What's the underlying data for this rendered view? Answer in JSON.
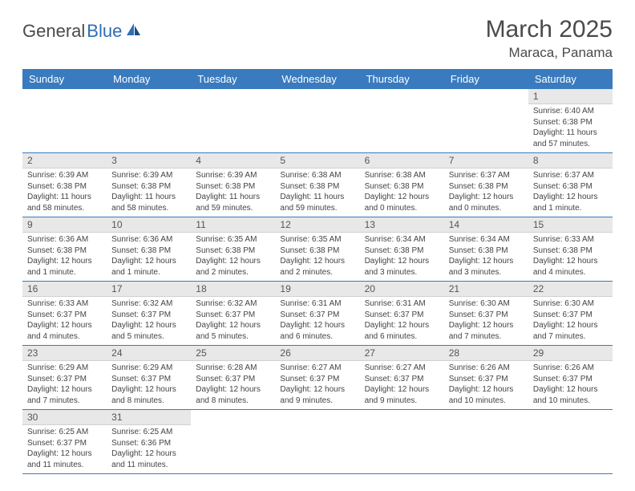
{
  "logo": {
    "text_dark": "General",
    "text_blue": "Blue"
  },
  "title": "March 2025",
  "location": "Maraca, Panama",
  "colors": {
    "header_bg": "#3a7bbf",
    "header_text": "#ffffff",
    "daynum_bg": "#e8e8e8",
    "border": "#3a7bbf",
    "logo_blue": "#2d6fb5",
    "logo_dark": "#4a4a4a"
  },
  "weekdays": [
    "Sunday",
    "Monday",
    "Tuesday",
    "Wednesday",
    "Thursday",
    "Friday",
    "Saturday"
  ],
  "weeks": [
    [
      null,
      null,
      null,
      null,
      null,
      null,
      {
        "n": "1",
        "sr": "Sunrise: 6:40 AM",
        "ss": "Sunset: 6:38 PM",
        "dl": "Daylight: 11 hours and 57 minutes."
      }
    ],
    [
      {
        "n": "2",
        "sr": "Sunrise: 6:39 AM",
        "ss": "Sunset: 6:38 PM",
        "dl": "Daylight: 11 hours and 58 minutes."
      },
      {
        "n": "3",
        "sr": "Sunrise: 6:39 AM",
        "ss": "Sunset: 6:38 PM",
        "dl": "Daylight: 11 hours and 58 minutes."
      },
      {
        "n": "4",
        "sr": "Sunrise: 6:39 AM",
        "ss": "Sunset: 6:38 PM",
        "dl": "Daylight: 11 hours and 59 minutes."
      },
      {
        "n": "5",
        "sr": "Sunrise: 6:38 AM",
        "ss": "Sunset: 6:38 PM",
        "dl": "Daylight: 11 hours and 59 minutes."
      },
      {
        "n": "6",
        "sr": "Sunrise: 6:38 AM",
        "ss": "Sunset: 6:38 PM",
        "dl": "Daylight: 12 hours and 0 minutes."
      },
      {
        "n": "7",
        "sr": "Sunrise: 6:37 AM",
        "ss": "Sunset: 6:38 PM",
        "dl": "Daylight: 12 hours and 0 minutes."
      },
      {
        "n": "8",
        "sr": "Sunrise: 6:37 AM",
        "ss": "Sunset: 6:38 PM",
        "dl": "Daylight: 12 hours and 1 minute."
      }
    ],
    [
      {
        "n": "9",
        "sr": "Sunrise: 6:36 AM",
        "ss": "Sunset: 6:38 PM",
        "dl": "Daylight: 12 hours and 1 minute."
      },
      {
        "n": "10",
        "sr": "Sunrise: 6:36 AM",
        "ss": "Sunset: 6:38 PM",
        "dl": "Daylight: 12 hours and 1 minute."
      },
      {
        "n": "11",
        "sr": "Sunrise: 6:35 AM",
        "ss": "Sunset: 6:38 PM",
        "dl": "Daylight: 12 hours and 2 minutes."
      },
      {
        "n": "12",
        "sr": "Sunrise: 6:35 AM",
        "ss": "Sunset: 6:38 PM",
        "dl": "Daylight: 12 hours and 2 minutes."
      },
      {
        "n": "13",
        "sr": "Sunrise: 6:34 AM",
        "ss": "Sunset: 6:38 PM",
        "dl": "Daylight: 12 hours and 3 minutes."
      },
      {
        "n": "14",
        "sr": "Sunrise: 6:34 AM",
        "ss": "Sunset: 6:38 PM",
        "dl": "Daylight: 12 hours and 3 minutes."
      },
      {
        "n": "15",
        "sr": "Sunrise: 6:33 AM",
        "ss": "Sunset: 6:38 PM",
        "dl": "Daylight: 12 hours and 4 minutes."
      }
    ],
    [
      {
        "n": "16",
        "sr": "Sunrise: 6:33 AM",
        "ss": "Sunset: 6:37 PM",
        "dl": "Daylight: 12 hours and 4 minutes."
      },
      {
        "n": "17",
        "sr": "Sunrise: 6:32 AM",
        "ss": "Sunset: 6:37 PM",
        "dl": "Daylight: 12 hours and 5 minutes."
      },
      {
        "n": "18",
        "sr": "Sunrise: 6:32 AM",
        "ss": "Sunset: 6:37 PM",
        "dl": "Daylight: 12 hours and 5 minutes."
      },
      {
        "n": "19",
        "sr": "Sunrise: 6:31 AM",
        "ss": "Sunset: 6:37 PM",
        "dl": "Daylight: 12 hours and 6 minutes."
      },
      {
        "n": "20",
        "sr": "Sunrise: 6:31 AM",
        "ss": "Sunset: 6:37 PM",
        "dl": "Daylight: 12 hours and 6 minutes."
      },
      {
        "n": "21",
        "sr": "Sunrise: 6:30 AM",
        "ss": "Sunset: 6:37 PM",
        "dl": "Daylight: 12 hours and 7 minutes."
      },
      {
        "n": "22",
        "sr": "Sunrise: 6:30 AM",
        "ss": "Sunset: 6:37 PM",
        "dl": "Daylight: 12 hours and 7 minutes."
      }
    ],
    [
      {
        "n": "23",
        "sr": "Sunrise: 6:29 AM",
        "ss": "Sunset: 6:37 PM",
        "dl": "Daylight: 12 hours and 7 minutes."
      },
      {
        "n": "24",
        "sr": "Sunrise: 6:29 AM",
        "ss": "Sunset: 6:37 PM",
        "dl": "Daylight: 12 hours and 8 minutes."
      },
      {
        "n": "25",
        "sr": "Sunrise: 6:28 AM",
        "ss": "Sunset: 6:37 PM",
        "dl": "Daylight: 12 hours and 8 minutes."
      },
      {
        "n": "26",
        "sr": "Sunrise: 6:27 AM",
        "ss": "Sunset: 6:37 PM",
        "dl": "Daylight: 12 hours and 9 minutes."
      },
      {
        "n": "27",
        "sr": "Sunrise: 6:27 AM",
        "ss": "Sunset: 6:37 PM",
        "dl": "Daylight: 12 hours and 9 minutes."
      },
      {
        "n": "28",
        "sr": "Sunrise: 6:26 AM",
        "ss": "Sunset: 6:37 PM",
        "dl": "Daylight: 12 hours and 10 minutes."
      },
      {
        "n": "29",
        "sr": "Sunrise: 6:26 AM",
        "ss": "Sunset: 6:37 PM",
        "dl": "Daylight: 12 hours and 10 minutes."
      }
    ],
    [
      {
        "n": "30",
        "sr": "Sunrise: 6:25 AM",
        "ss": "Sunset: 6:37 PM",
        "dl": "Daylight: 12 hours and 11 minutes."
      },
      {
        "n": "31",
        "sr": "Sunrise: 6:25 AM",
        "ss": "Sunset: 6:36 PM",
        "dl": "Daylight: 12 hours and 11 minutes."
      },
      null,
      null,
      null,
      null,
      null
    ]
  ]
}
